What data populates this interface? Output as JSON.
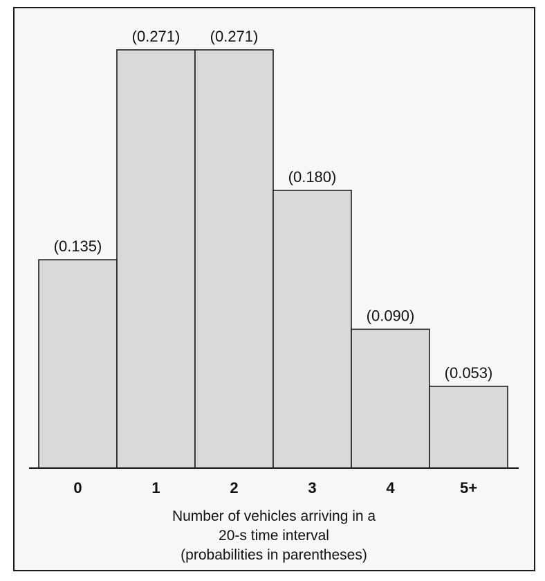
{
  "chart_data": {
    "type": "bar",
    "categories": [
      "0",
      "1",
      "2",
      "3",
      "4",
      "5+"
    ],
    "values": [
      0.135,
      0.271,
      0.271,
      0.18,
      0.09,
      0.053
    ],
    "data_labels": [
      "(0.135)",
      "(0.271)",
      "(0.271)",
      "(0.180)",
      "(0.090)",
      "(0.053)"
    ],
    "title": "",
    "xlabel_lines": [
      "Number of vehicles arriving in a",
      "20-s time interval",
      "(probabilities in parentheses)"
    ],
    "ylabel": "",
    "ylim": [
      0,
      0.271
    ],
    "grid": false,
    "legend": "none",
    "bar_color": "#d9d9d9",
    "outline_color": "#111111",
    "background_color": "#f7f7f7"
  }
}
